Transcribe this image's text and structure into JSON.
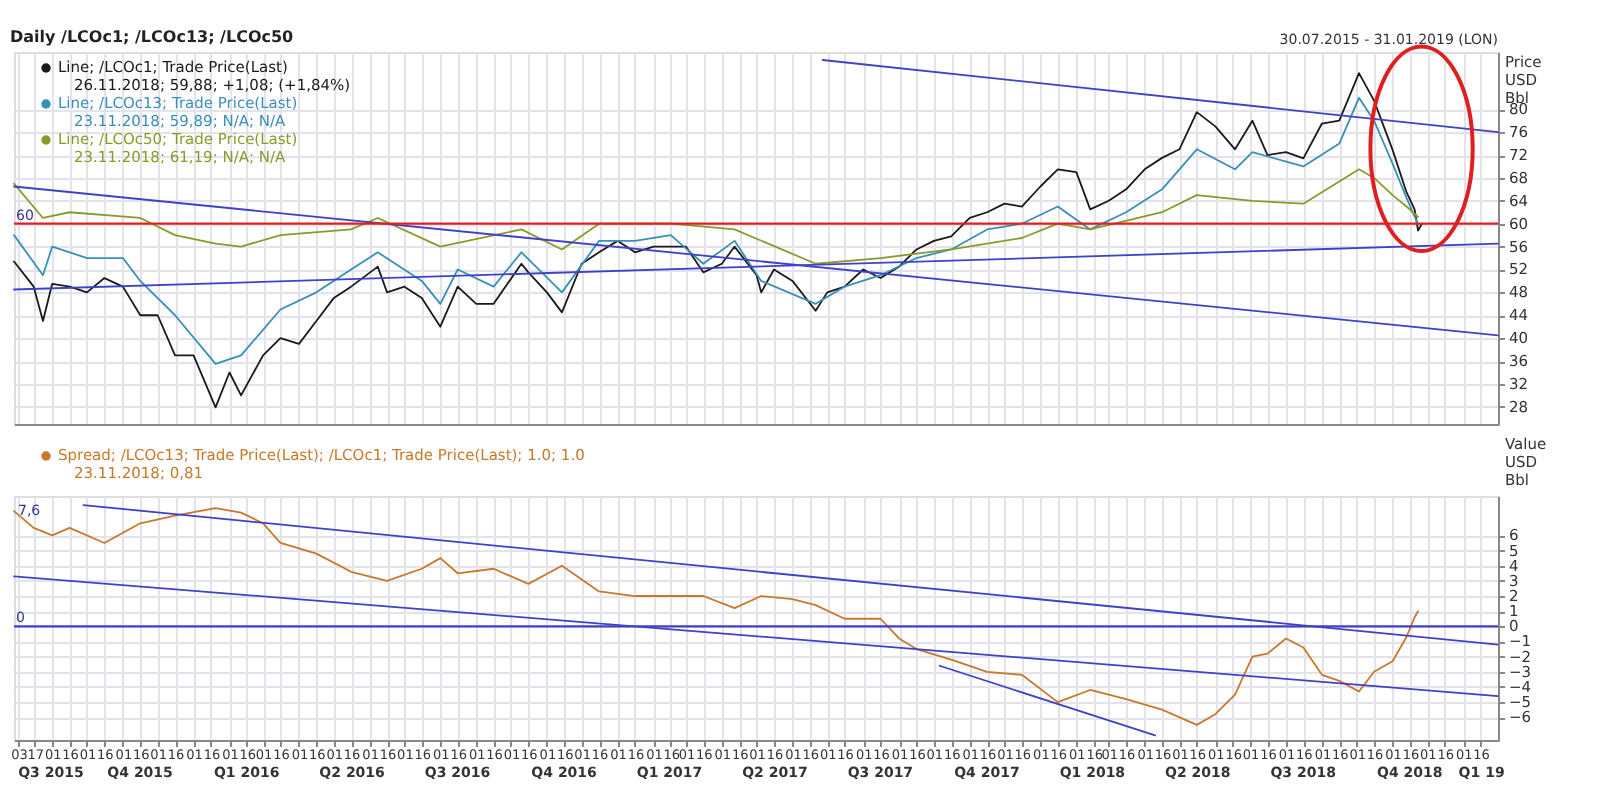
{
  "chart_data": [
    {
      "type": "line",
      "title": "Daily /LCOc1; /LCOc13; /LCOc50",
      "subtitle": "30.07.2015 - 31.01.2019 (LON)",
      "ylabel": "Price USD Bbl",
      "xlim": [
        "2015-07-30",
        "2019-01-31"
      ],
      "ylim": [
        25,
        90
      ],
      "yticks": [
        28,
        32,
        36,
        40,
        44,
        48,
        52,
        56,
        60,
        64,
        68,
        72,
        76,
        80
      ],
      "grid": true,
      "legend": "top left",
      "tick_labels": "y",
      "annotations": [
        "26.11.2018; 59,88; +1,08; (+1,84%)",
        "23.11.2018; 59,89; N/A; N/A",
        "23.11.2018; 61,19; N/A; N/A"
      ],
      "ref_lines": [
        {
          "axis": "y",
          "value": 60,
          "label": "60",
          "color": "#e02020"
        }
      ],
      "series": [
        {
          "name": "Line; /LCOc1; Trade Price(Last)",
          "color": "#1a1a1a",
          "x": [
            "2015-07-30",
            "2015-08-16",
            "2015-08-24",
            "2015-09-01",
            "2015-09-16",
            "2015-10-01",
            "2015-10-16",
            "2015-11-01",
            "2015-11-16",
            "2015-12-01",
            "2015-12-16",
            "2016-01-01",
            "2016-01-20",
            "2016-02-01",
            "2016-02-11",
            "2016-03-01",
            "2016-03-16",
            "2016-04-01",
            "2016-04-16",
            "2016-05-01",
            "2016-05-16",
            "2016-06-08",
            "2016-06-16",
            "2016-07-01",
            "2016-07-16",
            "2016-08-01",
            "2016-08-16",
            "2016-09-01",
            "2016-09-16",
            "2016-10-10",
            "2016-10-16",
            "2016-11-01",
            "2016-11-14",
            "2016-12-01",
            "2016-12-16",
            "2017-01-01",
            "2017-01-16",
            "2017-02-01",
            "2017-02-16",
            "2017-03-01",
            "2017-03-16",
            "2017-04-01",
            "2017-04-12",
            "2017-05-01",
            "2017-05-05",
            "2017-05-16",
            "2017-06-01",
            "2017-06-21",
            "2017-07-01",
            "2017-07-16",
            "2017-08-01",
            "2017-08-16",
            "2017-09-01",
            "2017-09-16",
            "2017-10-01",
            "2017-10-16",
            "2017-11-01",
            "2017-11-16",
            "2017-12-01",
            "2017-12-16",
            "2018-01-01",
            "2018-01-16",
            "2018-02-01",
            "2018-02-13",
            "2018-03-01",
            "2018-03-16",
            "2018-04-01",
            "2018-04-16",
            "2018-05-01",
            "2018-05-16",
            "2018-06-01",
            "2018-06-18",
            "2018-07-03",
            "2018-07-16",
            "2018-08-01",
            "2018-08-16",
            "2018-09-01",
            "2018-09-16",
            "2018-10-03",
            "2018-10-16",
            "2018-11-01",
            "2018-11-13",
            "2018-11-20",
            "2018-11-23",
            "2018-11-26"
          ],
          "values": [
            53.4,
            49,
            43,
            49.5,
            49,
            48,
            50.5,
            49,
            44,
            44,
            37,
            37,
            27.9,
            34,
            30,
            37,
            40,
            39,
            43,
            47,
            49,
            52.5,
            48,
            49,
            47,
            42,
            49,
            46,
            46,
            53,
            51.5,
            48,
            44.5,
            53,
            55,
            57,
            55,
            56,
            56,
            56,
            51.5,
            53,
            56,
            51,
            48,
            52,
            50,
            44.8,
            48,
            49,
            52,
            50.5,
            52.5,
            55.5,
            57,
            57.8,
            61,
            62,
            63.5,
            63,
            66.5,
            69.5,
            69,
            62.5,
            64,
            66,
            69.5,
            71.5,
            73,
            79.5,
            77,
            73,
            78,
            72,
            72.5,
            71.4,
            77.5,
            78,
            86.3,
            81.5,
            72.9,
            65.5,
            62.5,
            58.8,
            59.88
          ]
        },
        {
          "name": "Line; /LCOc13; Trade Price(Last)",
          "color": "#3a8fb7",
          "x": [
            "2015-07-30",
            "2015-08-24",
            "2015-09-01",
            "2015-10-01",
            "2015-11-01",
            "2015-11-16",
            "2015-12-16",
            "2016-01-20",
            "2016-02-11",
            "2016-03-16",
            "2016-04-16",
            "2016-05-16",
            "2016-06-08",
            "2016-07-16",
            "2016-08-01",
            "2016-08-16",
            "2016-09-16",
            "2016-10-10",
            "2016-11-14",
            "2016-12-16",
            "2017-01-16",
            "2017-02-16",
            "2017-03-16",
            "2017-04-12",
            "2017-05-05",
            "2017-06-21",
            "2017-07-16",
            "2017-08-16",
            "2017-09-16",
            "2017-10-16",
            "2017-11-16",
            "2017-12-16",
            "2018-01-16",
            "2018-02-13",
            "2018-03-16",
            "2018-04-16",
            "2018-05-16",
            "2018-06-18",
            "2018-07-03",
            "2018-08-16",
            "2018-09-16",
            "2018-10-03",
            "2018-10-16",
            "2018-11-01",
            "2018-11-13",
            "2018-11-23"
          ],
          "values": [
            58,
            51,
            56,
            54,
            54,
            50,
            44,
            35.5,
            37,
            45,
            48,
            52,
            55,
            50,
            46,
            52,
            49,
            55,
            48,
            57,
            57,
            58,
            53,
            57,
            50,
            46,
            49,
            51,
            54,
            55.5,
            59,
            60,
            63,
            59,
            62,
            66,
            73,
            69.5,
            72.5,
            70,
            74,
            82,
            78,
            70.5,
            64.5,
            59.89
          ]
        },
        {
          "name": "Line; /LCOc50; Trade Price(Last)",
          "color": "#8a9a2a",
          "x": [
            "2015-07-30",
            "2015-08-24",
            "2015-09-16",
            "2015-11-16",
            "2015-12-16",
            "2016-01-20",
            "2016-02-11",
            "2016-03-16",
            "2016-05-16",
            "2016-06-08",
            "2016-08-01",
            "2016-10-10",
            "2016-11-14",
            "2016-12-16",
            "2017-02-16",
            "2017-04-12",
            "2017-06-21",
            "2017-08-16",
            "2017-10-16",
            "2017-12-16",
            "2018-01-16",
            "2018-02-13",
            "2018-04-16",
            "2018-05-16",
            "2018-07-03",
            "2018-08-16",
            "2018-10-03",
            "2018-10-16",
            "2018-11-01",
            "2018-11-13",
            "2018-11-23"
          ],
          "values": [
            67,
            61,
            62,
            61,
            58,
            56.5,
            56,
            58,
            59,
            61,
            56,
            59,
            55.5,
            60,
            60,
            59,
            53,
            54,
            55.5,
            57.5,
            60,
            59,
            62,
            65,
            64,
            63.5,
            69.5,
            68,
            65,
            63,
            61.19
          ]
        },
        {
          "type": "line",
          "color": "#4040c8",
          "x": [
            "2015-07-30",
            "2019-01-31"
          ],
          "values": [
            66.5,
            40.5
          ]
        },
        {
          "type": "line",
          "color": "#4040c8",
          "x": [
            "2017-06-27",
            "2019-01-31"
          ],
          "values": [
            88.6,
            76
          ]
        },
        {
          "type": "line",
          "color": "#4040c8",
          "x": [
            "2015-07-30",
            "2019-01-31"
          ],
          "values": [
            48.5,
            56.5
          ]
        }
      ]
    },
    {
      "type": "line",
      "ylabel": "Value USD Bbl",
      "xlim": [
        "2015-07-30",
        "2019-01-31"
      ],
      "ylim": [
        -7.5,
        8.6
      ],
      "yticks": [
        -6,
        -5,
        -4,
        -3,
        -2,
        -1,
        0,
        1,
        2,
        3,
        4,
        5,
        6
      ],
      "grid": true,
      "legend": "top left",
      "annotations": [
        "23.11.2018; 0,81",
        {
          "text": "7,6",
          "x": "2015-07-30",
          "y": 7.6
        }
      ],
      "ref_lines": [
        {
          "axis": "y",
          "value": 0,
          "label": "0",
          "color": "#4040c8"
        }
      ],
      "xticks": [
        {
          "value": "2015-08-03",
          "label": "03"
        },
        {
          "value": "2015-08-17",
          "label": "17"
        },
        {
          "value": "2015-09-01",
          "label": "01"
        },
        {
          "value": "2015-09-16",
          "label": "16"
        },
        {
          "value": "2015-10-01",
          "label": "01"
        },
        {
          "value": "2015-10-16",
          "label": "16"
        },
        {
          "value": "2015-11-01",
          "label": "01"
        },
        {
          "value": "2015-11-16",
          "label": "16"
        },
        {
          "value": "2015-12-01",
          "label": "01"
        },
        {
          "value": "2015-12-16",
          "label": "16"
        },
        {
          "value": "2016-01-01",
          "label": "01"
        },
        {
          "value": "2016-01-16",
          "label": "16"
        },
        {
          "value": "2016-02-01",
          "label": "01"
        },
        {
          "value": "2016-02-16",
          "label": "16"
        },
        {
          "value": "2016-03-01",
          "label": "01"
        },
        {
          "value": "2016-03-16",
          "label": "16"
        },
        {
          "value": "2016-04-01",
          "label": "01"
        },
        {
          "value": "2016-04-16",
          "label": "16"
        },
        {
          "value": "2016-05-01",
          "label": "01"
        },
        {
          "value": "2016-05-16",
          "label": "16"
        },
        {
          "value": "2016-06-01",
          "label": "01"
        },
        {
          "value": "2016-06-16",
          "label": "16"
        },
        {
          "value": "2016-07-01",
          "label": "01"
        },
        {
          "value": "2016-07-16",
          "label": "16"
        },
        {
          "value": "2016-08-01",
          "label": "01"
        },
        {
          "value": "2016-08-16",
          "label": "16"
        },
        {
          "value": "2016-09-01",
          "label": "01"
        },
        {
          "value": "2016-09-16",
          "label": "16"
        },
        {
          "value": "2016-10-01",
          "label": "01"
        },
        {
          "value": "2016-10-16",
          "label": "16"
        },
        {
          "value": "2016-11-01",
          "label": "01"
        },
        {
          "value": "2016-11-16",
          "label": "16"
        },
        {
          "value": "2016-12-01",
          "label": "01"
        },
        {
          "value": "2016-12-16",
          "label": "16"
        },
        {
          "value": "2017-01-01",
          "label": "01"
        },
        {
          "value": "2017-01-16",
          "label": "16"
        },
        {
          "value": "2017-02-01",
          "label": "01"
        },
        {
          "value": "2017-02-16",
          "label": "16"
        },
        {
          "value": "2017-03-01",
          "label": "01"
        },
        {
          "value": "2017-03-16",
          "label": "16"
        },
        {
          "value": "2017-04-01",
          "label": "01"
        },
        {
          "value": "2017-04-16",
          "label": "16"
        },
        {
          "value": "2017-05-01",
          "label": "01"
        },
        {
          "value": "2017-05-16",
          "label": "16"
        },
        {
          "value": "2017-06-01",
          "label": "01"
        },
        {
          "value": "2017-06-16",
          "label": "16"
        },
        {
          "value": "2017-07-01",
          "label": "01"
        },
        {
          "value": "2017-07-16",
          "label": "16"
        },
        {
          "value": "2017-08-01",
          "label": "01"
        },
        {
          "value": "2017-08-16",
          "label": "16"
        },
        {
          "value": "2017-09-01",
          "label": "01"
        },
        {
          "value": "2017-09-16",
          "label": "16"
        },
        {
          "value": "2017-10-01",
          "label": "01"
        },
        {
          "value": "2017-10-16",
          "label": "16"
        },
        {
          "value": "2017-11-01",
          "label": "01"
        },
        {
          "value": "2017-11-16",
          "label": "16"
        },
        {
          "value": "2017-12-01",
          "label": "01"
        },
        {
          "value": "2017-12-16",
          "label": "16"
        },
        {
          "value": "2018-01-01",
          "label": "01"
        },
        {
          "value": "2018-01-16",
          "label": "16"
        },
        {
          "value": "2018-02-01",
          "label": "01"
        },
        {
          "value": "2018-02-16",
          "label": "16"
        },
        {
          "value": "2018-03-01",
          "label": "01"
        },
        {
          "value": "2018-03-16",
          "label": "16"
        },
        {
          "value": "2018-04-01",
          "label": "01"
        },
        {
          "value": "2018-04-16",
          "label": "16"
        },
        {
          "value": "2018-05-01",
          "label": "01"
        },
        {
          "value": "2018-05-16",
          "label": "16"
        },
        {
          "value": "2018-06-01",
          "label": "01"
        },
        {
          "value": "2018-06-16",
          "label": "16"
        },
        {
          "value": "2018-07-01",
          "label": "01"
        },
        {
          "value": "2018-07-16",
          "label": "16"
        },
        {
          "value": "2018-08-01",
          "label": "01"
        },
        {
          "value": "2018-08-16",
          "label": "16"
        },
        {
          "value": "2018-09-01",
          "label": "01"
        },
        {
          "value": "2018-09-16",
          "label": "16"
        },
        {
          "value": "2018-10-01",
          "label": "01"
        },
        {
          "value": "2018-10-16",
          "label": "16"
        },
        {
          "value": "2018-11-01",
          "label": "01"
        },
        {
          "value": "2018-11-16",
          "label": "16"
        },
        {
          "value": "2018-12-01",
          "label": "01"
        },
        {
          "value": "2018-12-16",
          "label": "16"
        },
        {
          "value": "2019-01-01",
          "label": "01"
        },
        {
          "value": "2019-01-16",
          "label": "16"
        }
      ],
      "x2lim": [
        "2015-07-30",
        "2019-01-31"
      ],
      "x2ticks": [
        {
          "value": "2015-08-30",
          "label": "Q3 2015"
        },
        {
          "value": "2015-11-15",
          "label": "Q4 2015"
        },
        {
          "value": "2016-02-15",
          "label": "Q1 2016"
        },
        {
          "value": "2016-05-16",
          "label": "Q2 2016"
        },
        {
          "value": "2016-08-15",
          "label": "Q3 2016"
        },
        {
          "value": "2016-11-15",
          "label": "Q4 2016"
        },
        {
          "value": "2017-02-14",
          "label": "Q1 2017"
        },
        {
          "value": "2017-05-16",
          "label": "Q2 2017"
        },
        {
          "value": "2017-08-15",
          "label": "Q3 2017"
        },
        {
          "value": "2017-11-15",
          "label": "Q4 2017"
        },
        {
          "value": "2018-02-14",
          "label": "Q1 2018"
        },
        {
          "value": "2018-05-16",
          "label": "Q2 2018"
        },
        {
          "value": "2018-08-15",
          "label": "Q3 2018"
        },
        {
          "value": "2018-11-15",
          "label": "Q4 2018"
        },
        {
          "value": "2019-01-16",
          "label": "Q1 19"
        }
      ],
      "series": [
        {
          "name": "Spread; /LCOc13; Trade Price(Last); /LCOc1; Trade Price(Last); 1.0; 1.0",
          "color": "#c8782a",
          "x": [
            "2015-07-30",
            "2015-08-16",
            "2015-09-01",
            "2015-09-16",
            "2015-10-16",
            "2015-11-16",
            "2015-12-16",
            "2016-01-20",
            "2016-02-11",
            "2016-03-01",
            "2016-03-16",
            "2016-04-16",
            "2016-05-16",
            "2016-06-16",
            "2016-07-16",
            "2016-08-01",
            "2016-08-16",
            "2016-09-16",
            "2016-10-16",
            "2016-11-14",
            "2016-12-16",
            "2017-01-16",
            "2017-02-16",
            "2017-03-16",
            "2017-04-12",
            "2017-05-05",
            "2017-06-01",
            "2017-06-21",
            "2017-07-16",
            "2017-08-16",
            "2017-09-01",
            "2017-09-16",
            "2017-10-16",
            "2017-11-16",
            "2017-12-16",
            "2018-01-16",
            "2018-02-13",
            "2018-03-16",
            "2018-04-16",
            "2018-05-16",
            "2018-06-01",
            "2018-06-18",
            "2018-07-03",
            "2018-07-16",
            "2018-08-01",
            "2018-08-16",
            "2018-09-01",
            "2018-09-16",
            "2018-10-03",
            "2018-10-16",
            "2018-11-01",
            "2018-11-13",
            "2018-11-20",
            "2018-11-23"
          ],
          "values": [
            7.6,
            6.5,
            6.0,
            6.5,
            5.5,
            6.8,
            7.3,
            7.8,
            7.5,
            6.8,
            5.5,
            4.8,
            3.6,
            3.0,
            3.8,
            4.5,
            3.5,
            3.8,
            2.8,
            4.0,
            2.3,
            2.0,
            2.0,
            2.0,
            1.2,
            2.0,
            1.8,
            1.4,
            0.5,
            0.5,
            -0.8,
            -1.5,
            -2.2,
            -3.0,
            -3.2,
            -5.0,
            -4.2,
            -4.8,
            -5.5,
            -6.5,
            -5.8,
            -4.5,
            -2.0,
            -1.8,
            -0.8,
            -1.4,
            -3.2,
            -3.6,
            -4.3,
            -3.0,
            -2.3,
            -0.7,
            0.6,
            1.0
          ]
        },
        {
          "type": "line",
          "color": "#4040c8",
          "x": [
            "2015-09-28",
            "2019-01-31"
          ],
          "values": [
            8.0,
            -1.2
          ]
        },
        {
          "type": "line",
          "color": "#4040c8",
          "x": [
            "2015-07-30",
            "2019-01-31"
          ],
          "values": [
            3.3,
            -4.6
          ]
        },
        {
          "type": "line",
          "color": "#4040c8",
          "x": [
            "2017-10-06",
            "2018-04-10"
          ],
          "values": [
            -2.6,
            -7.2
          ]
        }
      ]
    }
  ]
}
